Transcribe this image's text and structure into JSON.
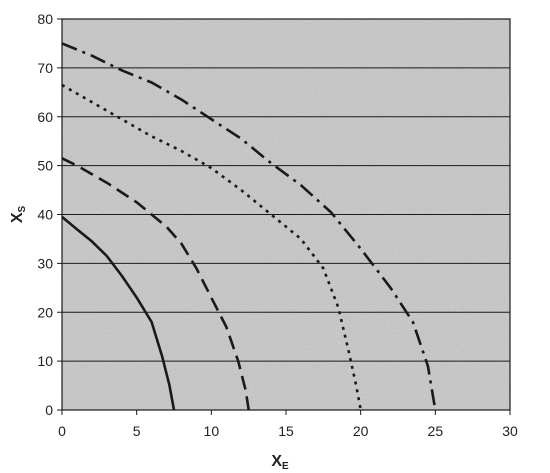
{
  "chart_data": {
    "type": "line",
    "title": "",
    "xlabel": "X",
    "xlabel_sub": "E",
    "ylabel": "X",
    "ylabel_sub": "S",
    "xlim": [
      0,
      30
    ],
    "ylim": [
      0,
      80
    ],
    "xticks": [
      0,
      5,
      10,
      15,
      20,
      25,
      30
    ],
    "yticks": [
      0,
      10,
      20,
      30,
      40,
      50,
      60,
      70,
      80
    ],
    "grid": "horizontal",
    "legend": "none",
    "background": "#c8c8c8",
    "line_color": "#1a1a1a",
    "series": [
      {
        "style": "solid",
        "points": [
          [
            0,
            39.5
          ],
          [
            1,
            37
          ],
          [
            2,
            34.5
          ],
          [
            3,
            31.5
          ],
          [
            4,
            27.5
          ],
          [
            5,
            23
          ],
          [
            6,
            18
          ],
          [
            6.7,
            11
          ],
          [
            7.2,
            5
          ],
          [
            7.5,
            0
          ]
        ]
      },
      {
        "style": "dashed",
        "points": [
          [
            0,
            51.5
          ],
          [
            1,
            50
          ],
          [
            3,
            46.5
          ],
          [
            5,
            42.5
          ],
          [
            7,
            37.5
          ],
          [
            8,
            34
          ],
          [
            9,
            29
          ],
          [
            10,
            23
          ],
          [
            11,
            17
          ],
          [
            11.8,
            10
          ],
          [
            12.3,
            4
          ],
          [
            12.5,
            0
          ]
        ]
      },
      {
        "style": "dotted",
        "points": [
          [
            0,
            66.5
          ],
          [
            2,
            63
          ],
          [
            4,
            59.5
          ],
          [
            6,
            56
          ],
          [
            8,
            53
          ],
          [
            10,
            49.5
          ],
          [
            12,
            45
          ],
          [
            14,
            40
          ],
          [
            16,
            35
          ],
          [
            17.5,
            29
          ],
          [
            18.5,
            21
          ],
          [
            19.2,
            12
          ],
          [
            19.7,
            5
          ],
          [
            20,
            0
          ]
        ]
      },
      {
        "style": "dash-dot",
        "points": [
          [
            0,
            75
          ],
          [
            2,
            72.5
          ],
          [
            4,
            69.5
          ],
          [
            6,
            67
          ],
          [
            8,
            63.5
          ],
          [
            10,
            59.5
          ],
          [
            12,
            55.5
          ],
          [
            14,
            50.5
          ],
          [
            16,
            46
          ],
          [
            18,
            40.5
          ],
          [
            20,
            33
          ],
          [
            22,
            25
          ],
          [
            23.5,
            18
          ],
          [
            24.5,
            9
          ],
          [
            25,
            0
          ]
        ]
      }
    ]
  }
}
